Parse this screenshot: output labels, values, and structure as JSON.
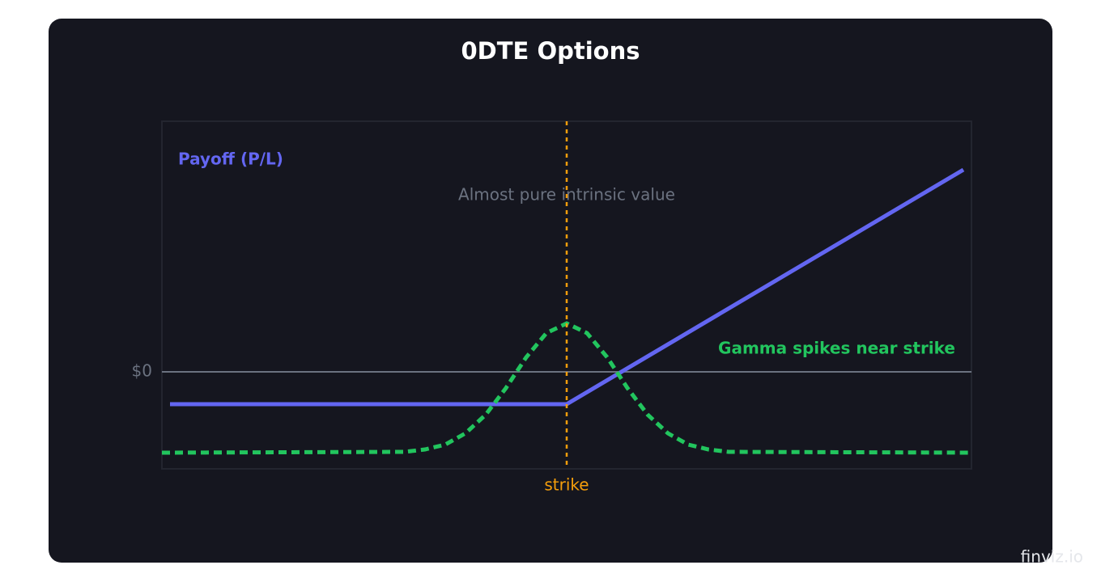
{
  "chart_data": {
    "type": "line",
    "title": "0DTE Options",
    "xlim": [
      0,
      1000
    ],
    "ylim": [
      -120,
      310
    ],
    "yticks": [
      {
        "value": 0,
        "label": "$0"
      }
    ],
    "series": [
      {
        "name": "Payoff (P/L)",
        "color": "#6366f1",
        "style": "solid",
        "x": [
          10,
          500,
          990
        ],
        "values": [
          -40,
          -40,
          250
        ]
      },
      {
        "name": "Gamma spikes near strike",
        "color": "#22c55e",
        "style": "dashed",
        "x": [
          0,
          300,
          325,
          350,
          375,
          400,
          425,
          450,
          475,
          500,
          525,
          550,
          575,
          600,
          625,
          650,
          675,
          700,
          1000
        ],
        "values": [
          -100,
          -99,
          -96,
          -90,
          -76,
          -53,
          -20,
          18,
          48,
          60,
          48,
          18,
          -20,
          -53,
          -76,
          -90,
          -96,
          -99,
          -100
        ]
      }
    ],
    "vline": {
      "x": 500,
      "label": "strike",
      "color": "#f59e0b"
    },
    "annotation": "Almost pure intrinsic value"
  },
  "watermark": "finviz.io"
}
